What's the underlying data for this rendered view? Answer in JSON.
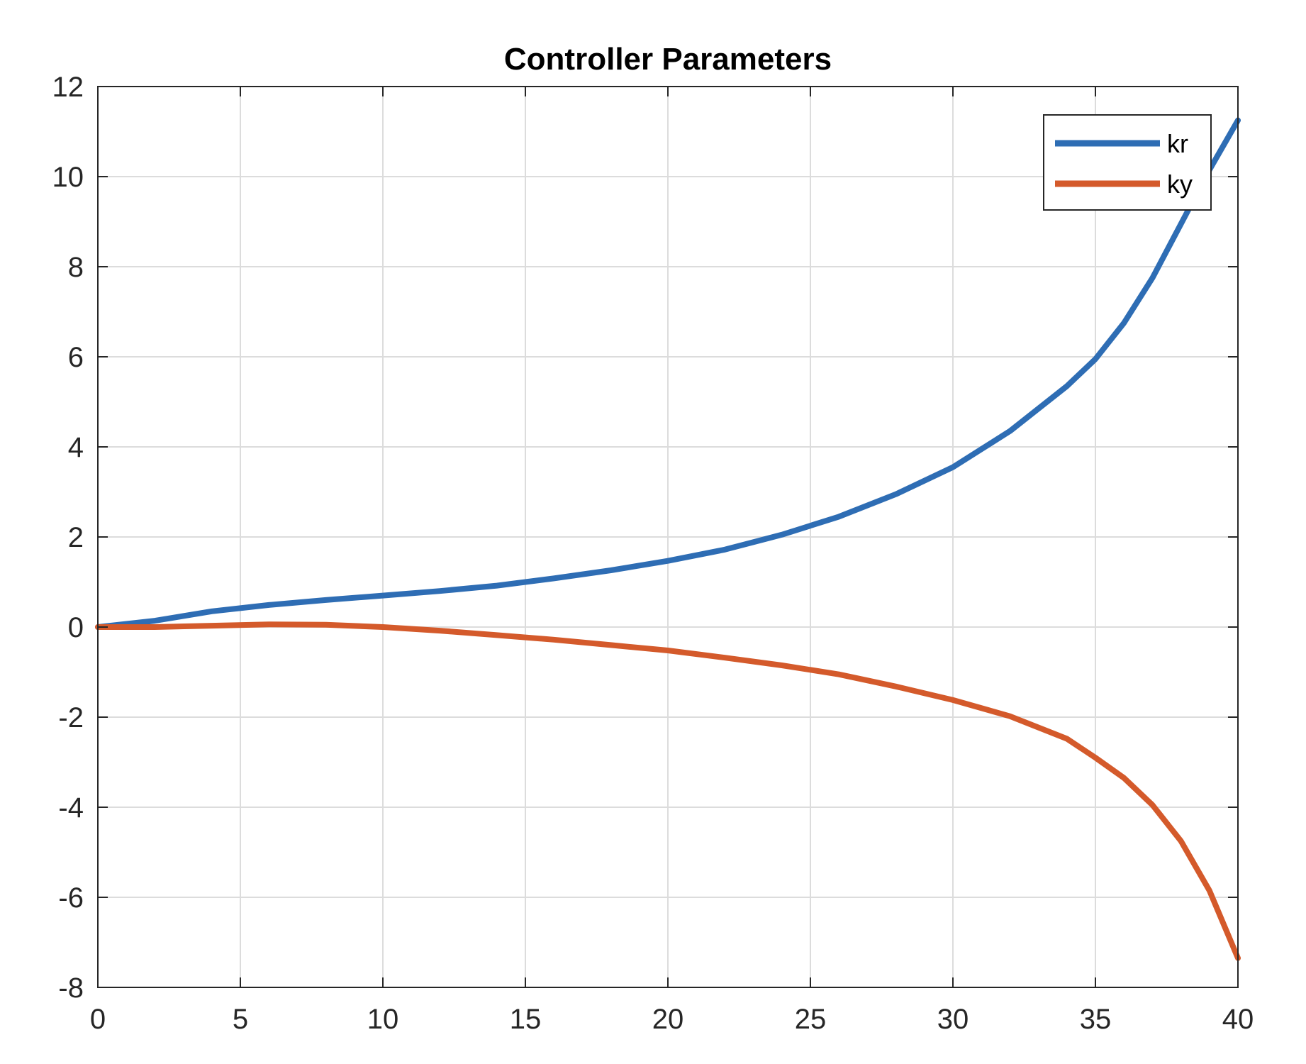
{
  "chart_data": {
    "type": "line",
    "title": "Controller Parameters",
    "xlabel": "",
    "ylabel": "",
    "xlim": [
      0,
      40
    ],
    "ylim": [
      -8,
      12
    ],
    "xticks": [
      0,
      5,
      10,
      15,
      20,
      25,
      30,
      35,
      40
    ],
    "yticks": [
      -8,
      -6,
      -4,
      -2,
      0,
      2,
      4,
      6,
      8,
      10,
      12
    ],
    "grid": true,
    "legend_position": "top-right",
    "x": [
      0,
      2,
      4,
      6,
      8,
      10,
      12,
      14,
      16,
      18,
      20,
      22,
      24,
      26,
      28,
      30,
      32,
      34,
      35,
      36,
      37,
      38,
      39,
      40
    ],
    "series": [
      {
        "name": "kr",
        "color": "#2e6db4",
        "values": [
          0.0,
          0.14,
          0.35,
          0.49,
          0.6,
          0.7,
          0.8,
          0.92,
          1.08,
          1.26,
          1.47,
          1.72,
          2.05,
          2.45,
          2.95,
          3.55,
          4.35,
          5.35,
          5.95,
          6.75,
          7.75,
          8.95,
          10.15,
          11.25
        ]
      },
      {
        "name": "ky",
        "color": "#d45a2b",
        "values": [
          0.0,
          0.0,
          0.03,
          0.06,
          0.05,
          0.0,
          -0.08,
          -0.18,
          -0.28,
          -0.4,
          -0.52,
          -0.68,
          -0.85,
          -1.05,
          -1.32,
          -1.62,
          -1.98,
          -2.48,
          -2.9,
          -3.35,
          -3.95,
          -4.75,
          -5.85,
          -7.35
        ]
      }
    ]
  }
}
